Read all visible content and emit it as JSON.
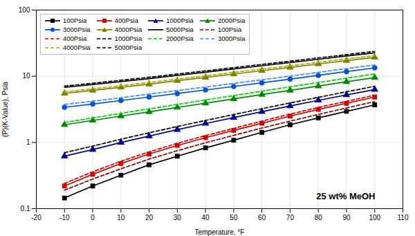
{
  "chart_data": {
    "type": "line",
    "annotations": [
      "25 wt% MeOH"
    ],
    "xlabel": "Temperature, °F",
    "ylabel": "(P)(K-Value), Psia",
    "x": [
      -10,
      0,
      10,
      20,
      30,
      40,
      50,
      60,
      70,
      80,
      90,
      100
    ],
    "series": [
      {
        "name": "100Psia",
        "color": "#000000",
        "line_style": "solid",
        "marker": "square",
        "values": [
          0.145,
          0.22,
          0.32,
          0.46,
          0.62,
          0.83,
          1.08,
          1.42,
          1.85,
          2.35,
          2.95,
          3.7
        ]
      },
      {
        "name": "400Psia",
        "color": "#cc0000",
        "line_style": "solid",
        "marker": "square",
        "values": [
          0.22,
          0.33,
          0.48,
          0.67,
          0.9,
          1.18,
          1.52,
          1.95,
          2.5,
          3.15,
          3.9,
          4.85
        ]
      },
      {
        "name": "1000Psia",
        "color": "#00008b",
        "line_style": "solid",
        "marker": "triangle",
        "values": [
          0.62,
          0.78,
          1.0,
          1.25,
          1.56,
          1.93,
          2.38,
          2.92,
          3.55,
          4.32,
          5.22,
          6.3
        ]
      },
      {
        "name": "2000Psia",
        "color": "#008800",
        "line_style": "solid",
        "marker": "triangle",
        "values": [
          1.85,
          2.15,
          2.5,
          2.9,
          3.38,
          3.92,
          4.55,
          5.28,
          6.12,
          7.1,
          8.25,
          9.55
        ]
      },
      {
        "name": "3000Psia",
        "color": "#0055cc",
        "line_style": "solid",
        "marker": "circle",
        "values": [
          3.4,
          3.8,
          4.3,
          4.85,
          5.48,
          6.2,
          7.0,
          7.95,
          9.05,
          10.3,
          11.75,
          13.4
        ]
      },
      {
        "name": "4000Psia",
        "color": "#808000",
        "line_style": "solid",
        "marker": "triangle",
        "values": [
          5.5,
          6.1,
          6.8,
          7.6,
          8.55,
          9.6,
          10.8,
          12.1,
          13.6,
          15.3,
          17.2,
          19.3
        ]
      },
      {
        "name": "5000Psia",
        "color": "#000000",
        "line_style": "solid",
        "values": [
          6.8,
          7.5,
          8.3,
          9.2,
          10.3,
          11.5,
          12.9,
          14.4,
          16.1,
          18.0,
          20.2,
          22.6
        ]
      },
      {
        "name": "100Psia",
        "color": "#8b0000",
        "line_style": "dashed",
        "values": [
          0.19,
          0.28,
          0.4,
          0.56,
          0.75,
          0.99,
          1.28,
          1.65,
          2.1,
          2.65,
          3.32,
          4.15
        ]
      },
      {
        "name": "400Psia",
        "color": "#cc0000",
        "line_style": "dashed",
        "values": [
          0.24,
          0.36,
          0.52,
          0.72,
          0.97,
          1.27,
          1.63,
          2.1,
          2.68,
          3.38,
          4.18,
          5.18
        ]
      },
      {
        "name": "1000Psia",
        "color": "#000000",
        "line_style": "dashed",
        "values": [
          0.7,
          0.88,
          1.12,
          1.4,
          1.74,
          2.15,
          2.64,
          3.24,
          3.95,
          4.8,
          5.82,
          7.05
        ]
      },
      {
        "name": "2000Psia",
        "color": "#00cc00",
        "line_style": "dashed",
        "values": [
          2.0,
          2.35,
          2.75,
          3.22,
          3.75,
          4.38,
          5.1,
          5.95,
          6.92,
          8.05,
          9.35,
          10.85
        ]
      },
      {
        "name": "3000Psia",
        "color": "#4488ff",
        "line_style": "dashed",
        "values": [
          3.75,
          4.2,
          4.75,
          5.38,
          6.08,
          6.88,
          7.8,
          8.85,
          10.05,
          11.45,
          13.05,
          14.85
        ]
      },
      {
        "name": "4000Psia",
        "color": "#aaaa00",
        "line_style": "dashed",
        "values": [
          5.8,
          6.45,
          7.2,
          8.05,
          9.05,
          10.15,
          11.42,
          12.82,
          14.42,
          16.22,
          18.25,
          20.5
        ]
      },
      {
        "name": "5000Psia",
        "color": "#000000",
        "line_style": "dashed",
        "values": [
          7.1,
          7.85,
          8.7,
          9.65,
          10.8,
          12.05,
          13.5,
          15.1,
          16.9,
          18.9,
          21.2,
          23.75
        ]
      }
    ],
    "xlim": [
      -20,
      110
    ],
    "xticks": [
      -20,
      -10,
      0,
      10,
      20,
      30,
      40,
      50,
      60,
      70,
      80,
      90,
      100,
      110
    ],
    "ylim": [
      0.1,
      100.0
    ],
    "yticks": [
      0.1,
      1,
      10,
      100
    ],
    "log": "y",
    "grid": true,
    "legend": "upper left"
  }
}
